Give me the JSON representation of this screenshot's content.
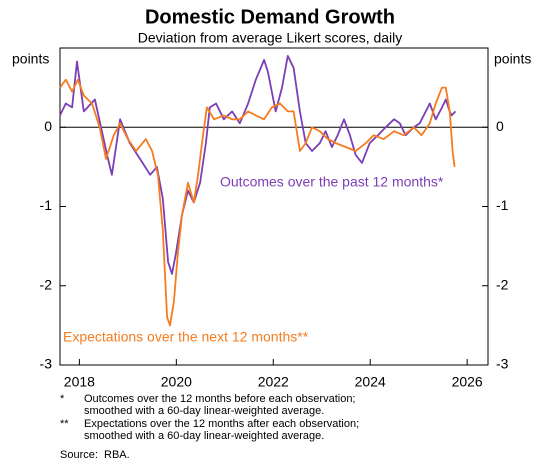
{
  "chart_data": {
    "type": "line",
    "title": "Domestic Demand Growth",
    "subtitle": "Deviation from average Likert scores, daily",
    "ylabel": "points",
    "y2label": "points",
    "xlim": [
      2017.6,
      2026.43
    ],
    "xticks": [
      2018,
      2020,
      2022,
      2024,
      2026
    ],
    "ylim": [
      -3,
      1
    ],
    "yticks": [
      -3,
      -2,
      -1,
      0
    ],
    "zero_line": true,
    "series": [
      {
        "name": "Outcomes over the past 12 months*",
        "color": "#7b3fb5",
        "x": [
          2017.6,
          2017.72,
          2017.85,
          2017.95,
          2018.09,
          2018.32,
          2018.59,
          2018.67,
          2018.84,
          2019.04,
          2019.25,
          2019.46,
          2019.6,
          2019.72,
          2019.83,
          2019.91,
          2019.99,
          2020.12,
          2020.24,
          2020.36,
          2020.49,
          2020.61,
          2020.69,
          2020.82,
          2020.98,
          2021.15,
          2021.31,
          2021.48,
          2021.64,
          2021.81,
          2021.89,
          2022.05,
          2022.18,
          2022.3,
          2022.42,
          2022.55,
          2022.67,
          2022.8,
          2022.96,
          2023.08,
          2023.21,
          2023.33,
          2023.46,
          2023.58,
          2023.7,
          2023.83,
          2023.99,
          2024.16,
          2024.32,
          2024.49,
          2024.61,
          2024.73,
          2024.9,
          2025.02,
          2025.23,
          2025.35,
          2025.48,
          2025.56,
          2025.64,
          2025.68,
          2025.76
        ],
        "values": [
          0.15,
          0.3,
          0.25,
          0.83,
          0.2,
          0.35,
          -0.4,
          -0.6,
          0.1,
          -0.2,
          -0.4,
          -0.6,
          -0.5,
          -0.9,
          -1.7,
          -1.85,
          -1.6,
          -1.1,
          -0.8,
          -0.95,
          -0.7,
          -0.2,
          0.25,
          0.3,
          0.1,
          0.2,
          0.05,
          0.3,
          0.6,
          0.85,
          0.7,
          0.2,
          0.5,
          0.9,
          0.75,
          0.2,
          -0.2,
          -0.3,
          -0.2,
          -0.05,
          -0.25,
          -0.1,
          0.1,
          -0.1,
          -0.35,
          -0.45,
          -0.2,
          -0.1,
          0.0,
          0.1,
          0.05,
          -0.1,
          0.0,
          0.05,
          0.3,
          0.1,
          0.25,
          0.35,
          0.2,
          0.15,
          0.2
        ]
      },
      {
        "name": "Expectations over the next 12 months**",
        "color": "#f57c1f",
        "x": [
          2017.6,
          2017.72,
          2017.85,
          2017.97,
          2018.09,
          2018.26,
          2018.42,
          2018.55,
          2018.71,
          2018.84,
          2019.0,
          2019.17,
          2019.37,
          2019.5,
          2019.62,
          2019.72,
          2019.81,
          2019.87,
          2019.95,
          2020.03,
          2020.12,
          2020.24,
          2020.36,
          2020.45,
          2020.55,
          2020.63,
          2020.78,
          2020.98,
          2021.15,
          2021.31,
          2021.48,
          2021.64,
          2021.81,
          2021.97,
          2022.14,
          2022.3,
          2022.42,
          2022.55,
          2022.67,
          2022.8,
          2022.96,
          2023.13,
          2023.29,
          2023.5,
          2023.7,
          2023.91,
          2024.07,
          2024.28,
          2024.49,
          2024.69,
          2024.9,
          2025.06,
          2025.23,
          2025.35,
          2025.48,
          2025.56,
          2025.64,
          2025.7,
          2025.74
        ],
        "values": [
          0.5,
          0.6,
          0.45,
          0.6,
          0.4,
          0.3,
          0.0,
          -0.4,
          -0.1,
          0.05,
          -0.15,
          -0.3,
          -0.15,
          -0.3,
          -0.6,
          -1.3,
          -2.4,
          -2.5,
          -2.2,
          -1.6,
          -1.1,
          -0.7,
          -0.95,
          -0.6,
          -0.1,
          0.25,
          0.1,
          0.15,
          0.1,
          0.1,
          0.2,
          0.15,
          0.1,
          0.25,
          0.3,
          0.2,
          0.2,
          -0.3,
          -0.2,
          0.0,
          -0.05,
          -0.15,
          -0.2,
          -0.25,
          -0.3,
          -0.2,
          -0.1,
          -0.15,
          -0.05,
          -0.1,
          0.0,
          -0.1,
          0.05,
          0.3,
          0.5,
          0.5,
          0.2,
          -0.3,
          -0.5
        ]
      }
    ],
    "notes": [
      {
        "marker": "*",
        "text": "Outcomes over the 12 months before each observation; smoothed with a 60-day linear-weighted average."
      },
      {
        "marker": "**",
        "text": "Expectations over the 12 months after each observation; smoothed with a 60-day linear-weighted average."
      }
    ],
    "source": "Source:  RBA."
  }
}
